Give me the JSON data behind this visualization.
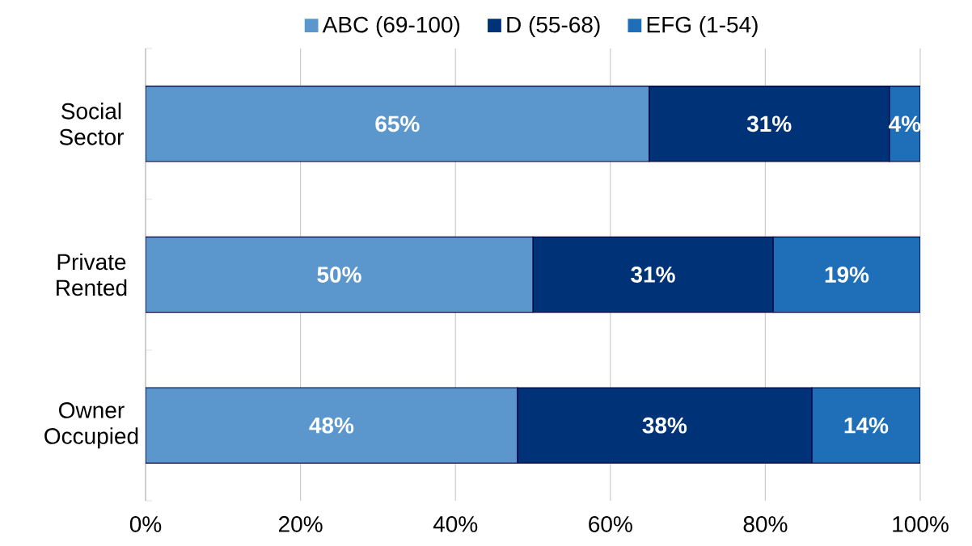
{
  "chart_data": {
    "type": "bar",
    "orientation": "horizontal",
    "stacked": true,
    "categories": [
      "Social Sector",
      "Private Rented",
      "Owner Occupied"
    ],
    "series": [
      {
        "name": "ABC (69-100)",
        "color": "#5b97cc",
        "values": [
          65,
          50,
          48
        ],
        "value_labels": [
          "65%",
          "50%",
          "48%"
        ]
      },
      {
        "name": "D (55-68)",
        "color": "#003278",
        "values": [
          31,
          31,
          38
        ],
        "value_labels": [
          "31%",
          "31%",
          "38%"
        ]
      },
      {
        "name": "EFG (1-54)",
        "color": "#1f6fb8",
        "values": [
          4,
          19,
          14
        ],
        "value_labels": [
          "4%",
          "19%",
          "14%"
        ]
      }
    ],
    "xlim": [
      0,
      100
    ],
    "xticks": [
      {
        "value": 0,
        "label": "0%"
      },
      {
        "value": 20,
        "label": "20%"
      },
      {
        "value": 40,
        "label": "40%"
      },
      {
        "value": 60,
        "label": "60%"
      },
      {
        "value": 80,
        "label": "80%"
      },
      {
        "value": 100,
        "label": "100%"
      }
    ],
    "grid": "x",
    "legend": "top"
  }
}
